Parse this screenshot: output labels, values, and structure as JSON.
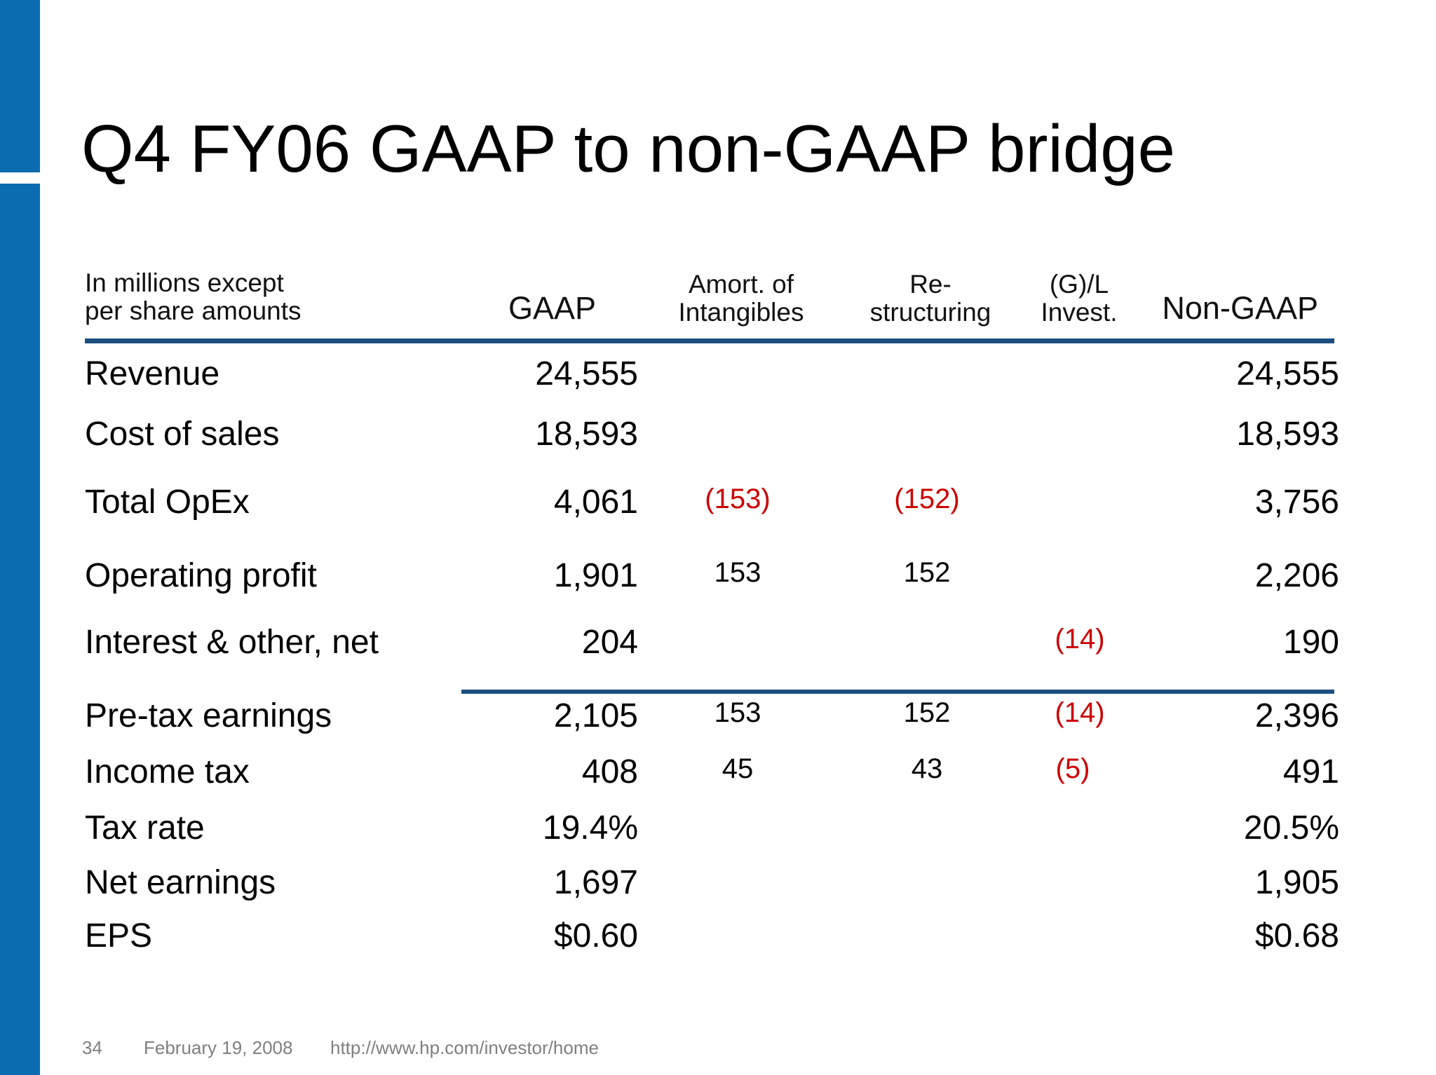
{
  "title": "Q4 FY06 GAAP to non-GAAP bridge",
  "table": {
    "header": {
      "units_line1": "In millions except",
      "units_line2": "per share amounts",
      "gaap": "GAAP",
      "amort_line1": "Amort. of",
      "amort_line2": "Intangibles",
      "restr_line1": "Re-",
      "restr_line2": "structuring",
      "gl_line1": "(G)/L",
      "gl_line2": "Invest.",
      "nongaap": "Non-GAAP"
    },
    "rows": [
      {
        "label": "Revenue",
        "gaap": "24,555",
        "amort": "",
        "restr": "",
        "gl": "",
        "nongaap": "24,555"
      },
      {
        "label": "Cost of sales",
        "gaap": "18,593",
        "amort": "",
        "restr": "",
        "gl": "",
        "nongaap": "18,593"
      },
      {
        "label": "Total OpEx",
        "gaap": "4,061",
        "amort": "(153)",
        "restr": "(152)",
        "gl": "",
        "nongaap": "3,756"
      },
      {
        "label": "Operating profit",
        "gaap": "1,901",
        "amort": "153",
        "restr": "152",
        "gl": "",
        "nongaap": "2,206"
      },
      {
        "label": "Interest & other, net",
        "gaap": "204",
        "amort": "",
        "restr": "",
        "gl": "(14)",
        "nongaap": "190"
      },
      {
        "label": "Pre-tax earnings",
        "gaap": "2,105",
        "amort": "153",
        "restr": "152",
        "gl": "(14)",
        "nongaap": "2,396"
      },
      {
        "label": "Income tax",
        "gaap": "408",
        "amort": "45",
        "restr": "43",
        "gl": "(5)",
        "nongaap": "491"
      },
      {
        "label": "Tax rate",
        "gaap": "19.4%",
        "amort": "",
        "restr": "",
        "gl": "",
        "nongaap": "20.5%"
      },
      {
        "label": "Net earnings",
        "gaap": "1,697",
        "amort": "",
        "restr": "",
        "gl": "",
        "nongaap": "1,905"
      },
      {
        "label": "EPS",
        "gaap": "$0.60",
        "amort": "",
        "restr": "",
        "gl": "",
        "nongaap": "$0.68"
      }
    ]
  },
  "footer": {
    "page_number": "34",
    "date": "February 19, 2008",
    "url": "http://www.hp.com/investor/home"
  },
  "colors": {
    "accent_bar": "#0b6cb0",
    "rule": "#1b4f7e",
    "negative": "#cc0000",
    "footer_text": "#7f7f7f"
  }
}
